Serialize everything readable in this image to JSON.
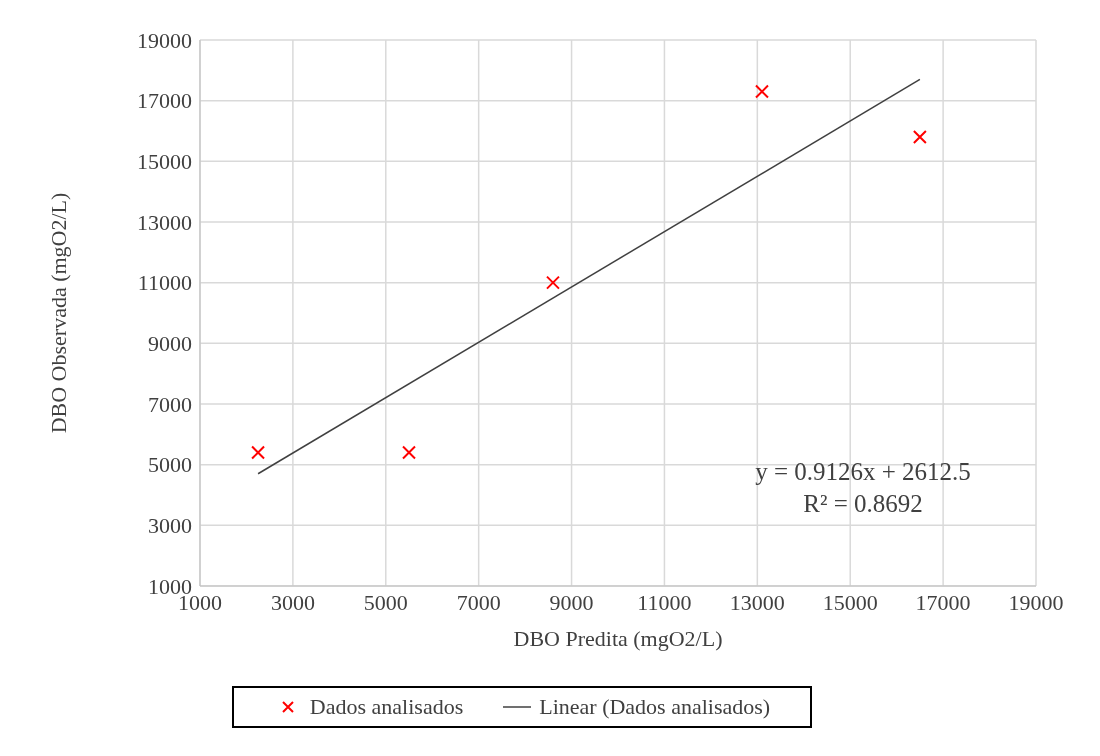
{
  "chart_data": {
    "type": "scatter",
    "xlabel": "DBO Predita (mgO2/L)",
    "ylabel": "DBO Observada (mgO2/L)",
    "series": [
      {
        "name": "Dados analisados",
        "color": "#ff0000",
        "marker": "cross",
        "x": [
          2250,
          5500,
          8600,
          13100,
          16500
        ],
        "values": [
          5400,
          5400,
          11000,
          17300,
          15800
        ]
      },
      {
        "name": "Linear (Dados analisados)",
        "type": "line",
        "color": "#404040",
        "marker": "none",
        "line_style": "solid",
        "x": [
          2250,
          16500
        ],
        "values": [
          4700,
          17700
        ]
      }
    ],
    "xlim": [
      1000,
      19000
    ],
    "xticks": [
      1000,
      3000,
      5000,
      7000,
      9000,
      11000,
      13000,
      15000,
      17000,
      19000
    ],
    "ylim": [
      1000,
      19000
    ],
    "yticks": [
      1000,
      3000,
      5000,
      7000,
      9000,
      11000,
      13000,
      15000,
      17000,
      19000
    ],
    "grid": true,
    "legend": "bottom",
    "annotations": [
      "y = 0.9126x + 2612.5",
      "R² = 0.8692"
    ]
  }
}
